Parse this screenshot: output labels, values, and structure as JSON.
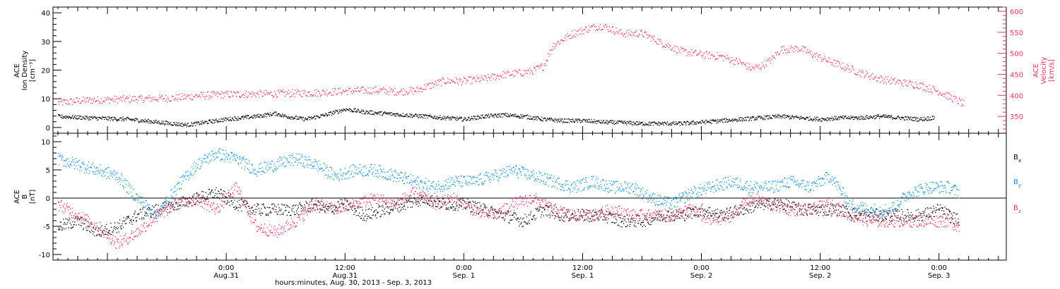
{
  "colors": {
    "density": "#000000",
    "velocity": "#e8335f",
    "bx": "#000000",
    "by": "#1a8ae6",
    "bz": "#e8335f",
    "axis": "#000000"
  },
  "x_axis": {
    "title": "hours:minutes, Aug. 30, 2013 - Sep.  3, 2013",
    "range_hours": [
      -17.5,
      78.8
    ],
    "ticks": [
      {
        "hour": 0,
        "time": "0:00",
        "date": "Aug.31"
      },
      {
        "hour": 12,
        "time": "12:00",
        "date": "Aug.31"
      },
      {
        "hour": 24,
        "time": "0:00",
        "date": "Sep. 1"
      },
      {
        "hour": 36,
        "time": "12:00",
        "date": "Sep. 1"
      },
      {
        "hour": 48,
        "time": "0:00",
        "date": "Sep. 2"
      },
      {
        "hour": 60,
        "time": "12:00",
        "date": "Sep. 2"
      },
      {
        "hour": 72,
        "time": "0:00",
        "date": "Sep. 3"
      }
    ]
  },
  "chart_data": [
    {
      "type": "scatter",
      "panel": "top",
      "ylabel_left": [
        "ACE",
        "Ion Density",
        "[cm⁻³]"
      ],
      "ylabel_right": [
        "ACE",
        "Velocity",
        "[km/s]"
      ],
      "ylim_left": [
        -2,
        42
      ],
      "ylim_right": [
        310,
        610
      ],
      "yticks_left": [
        "0",
        "10",
        "20",
        "30",
        "40"
      ],
      "yticks_right": [
        "350",
        "400",
        "450",
        "500",
        "550",
        "600"
      ],
      "series": [
        {
          "axis": "left",
          "color_key": "density",
          "points": [
            [
              -17,
              4
            ],
            [
              -14,
              3.5
            ],
            [
              -10,
              3
            ],
            [
              -7,
              2
            ],
            [
              -4,
              1
            ],
            [
              -2,
              2
            ],
            [
              0,
              3
            ],
            [
              3,
              4
            ],
            [
              5,
              5
            ],
            [
              6,
              4
            ],
            [
              8,
              3
            ],
            [
              10,
              4.5
            ],
            [
              12,
              6.5
            ],
            [
              14,
              5.5
            ],
            [
              16,
              5
            ],
            [
              18,
              4.5
            ],
            [
              20,
              4
            ],
            [
              22,
              3.5
            ],
            [
              24,
              3
            ],
            [
              26,
              4
            ],
            [
              28,
              4.5
            ],
            [
              30,
              4
            ],
            [
              32,
              3
            ],
            [
              34,
              2.5
            ],
            [
              36,
              2.5
            ],
            [
              38,
              2
            ],
            [
              40,
              1.8
            ],
            [
              42,
              1.5
            ],
            [
              44,
              1.5
            ],
            [
              46,
              1.5
            ],
            [
              48,
              2
            ],
            [
              50,
              2.5
            ],
            [
              52,
              3
            ],
            [
              54,
              3.5
            ],
            [
              56,
              4
            ],
            [
              58,
              3.5
            ],
            [
              60,
              3
            ],
            [
              62,
              3.5
            ],
            [
              64,
              3.5
            ],
            [
              66,
              4
            ],
            [
              68,
              3.5
            ],
            [
              70,
              3
            ],
            [
              71.5,
              3.5
            ]
          ]
        },
        {
          "axis": "right",
          "color_key": "velocity",
          "points": [
            [
              -17,
              383
            ],
            [
              -15,
              388
            ],
            [
              -13,
              390
            ],
            [
              -10,
              392
            ],
            [
              -8,
              393
            ],
            [
              -5,
              395
            ],
            [
              -3,
              400
            ],
            [
              0,
              403
            ],
            [
              3,
              404
            ],
            [
              5,
              405
            ],
            [
              7,
              406
            ],
            [
              9,
              407
            ],
            [
              11,
              410
            ],
            [
              13,
              412
            ],
            [
              15,
              413
            ],
            [
              17,
              410
            ],
            [
              19,
              412
            ],
            [
              20,
              420
            ],
            [
              22,
              435
            ],
            [
              24,
              435
            ],
            [
              26,
              440
            ],
            [
              28,
              450
            ],
            [
              30,
              455
            ],
            [
              31,
              460
            ],
            [
              32,
              470
            ],
            [
              33,
              520
            ],
            [
              35,
              548
            ],
            [
              37,
              563
            ],
            [
              38,
              566
            ],
            [
              40,
              548
            ],
            [
              42,
              548
            ],
            [
              44,
              525
            ],
            [
              46,
              505
            ],
            [
              48,
              498
            ],
            [
              50,
              493
            ],
            [
              52,
              478
            ],
            [
              53,
              465
            ],
            [
              54,
              470
            ],
            [
              55,
              485
            ],
            [
              56,
              510
            ],
            [
              58,
              512
            ],
            [
              60,
              490
            ],
            [
              62,
              472
            ],
            [
              64,
              455
            ],
            [
              66,
              440
            ],
            [
              68,
              432
            ],
            [
              70,
              425
            ],
            [
              72,
              410
            ],
            [
              73,
              398
            ],
            [
              74.5,
              380
            ]
          ]
        }
      ]
    },
    {
      "type": "scatter",
      "panel": "bottom",
      "ylabel_left": [
        "ACE",
        "B",
        "[nT]"
      ],
      "ylim": [
        -11,
        11.5
      ],
      "yticks": [
        "-10",
        "-5",
        "0",
        "5",
        "10"
      ],
      "zero_line": true,
      "legend": [
        "B",
        "B",
        "B"
      ],
      "legend_sub": [
        "x",
        "y",
        "z"
      ],
      "series": [
        {
          "name": "B",
          "sub": "x",
          "color_key": "bx",
          "points": [
            [
              -17,
              -5
            ],
            [
              -15,
              -4
            ],
            [
              -13,
              -6
            ],
            [
              -11,
              -5
            ],
            [
              -9,
              -3
            ],
            [
              -7,
              -2
            ],
            [
              -5,
              -1
            ],
            [
              -3,
              0
            ],
            [
              -1,
              1
            ],
            [
              1,
              -1
            ],
            [
              3,
              -2
            ],
            [
              5,
              -2
            ],
            [
              7,
              -2
            ],
            [
              9,
              -1
            ],
            [
              10,
              -2
            ],
            [
              12,
              -1
            ],
            [
              14,
              -3
            ],
            [
              16,
              -2
            ],
            [
              18,
              -1
            ],
            [
              20,
              0
            ],
            [
              22,
              -1
            ],
            [
              24,
              -1
            ],
            [
              26,
              -2
            ],
            [
              28,
              -3
            ],
            [
              30,
              -4
            ],
            [
              32,
              -2
            ],
            [
              34,
              -3
            ],
            [
              36,
              -3
            ],
            [
              38,
              -3
            ],
            [
              40,
              -4
            ],
            [
              42,
              -4
            ],
            [
              44,
              -3
            ],
            [
              46,
              -3
            ],
            [
              48,
              -2
            ],
            [
              50,
              -3
            ],
            [
              52,
              -2
            ],
            [
              54,
              -1
            ],
            [
              56,
              -1
            ],
            [
              58,
              -2
            ],
            [
              60,
              -2
            ],
            [
              62,
              -2
            ],
            [
              64,
              -3
            ],
            [
              66,
              -3
            ],
            [
              68,
              -3
            ],
            [
              70,
              -3
            ],
            [
              72,
              -2
            ],
            [
              74,
              -4
            ]
          ]
        },
        {
          "name": "B",
          "sub": "y",
          "color_key": "by",
          "points": [
            [
              -17,
              7
            ],
            [
              -15,
              6
            ],
            [
              -13,
              5
            ],
            [
              -11,
              4
            ],
            [
              -9,
              0
            ],
            [
              -7,
              -3
            ],
            [
              -5,
              2
            ],
            [
              -3,
              6
            ],
            [
              -1,
              8
            ],
            [
              1,
              7
            ],
            [
              3,
              5
            ],
            [
              5,
              6
            ],
            [
              7,
              7
            ],
            [
              9,
              6
            ],
            [
              11,
              4
            ],
            [
              13,
              5
            ],
            [
              15,
              5
            ],
            [
              17,
              4
            ],
            [
              19,
              3
            ],
            [
              21,
              2
            ],
            [
              23,
              3
            ],
            [
              25,
              3
            ],
            [
              27,
              4
            ],
            [
              29,
              5
            ],
            [
              31,
              4
            ],
            [
              33,
              3
            ],
            [
              35,
              2
            ],
            [
              37,
              3
            ],
            [
              39,
              2
            ],
            [
              41,
              2
            ],
            [
              43,
              0
            ],
            [
              45,
              -1
            ],
            [
              47,
              1
            ],
            [
              49,
              2
            ],
            [
              51,
              3
            ],
            [
              53,
              2
            ],
            [
              55,
              2
            ],
            [
              57,
              3
            ],
            [
              59,
              2
            ],
            [
              61,
              4
            ],
            [
              63,
              -1
            ],
            [
              65,
              -2
            ],
            [
              67,
              -2
            ],
            [
              69,
              1
            ],
            [
              71,
              2
            ],
            [
              73,
              2
            ],
            [
              74,
              1
            ]
          ]
        },
        {
          "name": "B",
          "sub": "z",
          "color_key": "bz",
          "points": [
            [
              -17,
              -1
            ],
            [
              -15,
              -3
            ],
            [
              -13,
              -5
            ],
            [
              -11,
              -8
            ],
            [
              -9,
              -6
            ],
            [
              -7,
              -3
            ],
            [
              -5,
              -1
            ],
            [
              -3,
              0
            ],
            [
              -1,
              -2
            ],
            [
              1,
              2
            ],
            [
              3,
              -5
            ],
            [
              5,
              -6
            ],
            [
              7,
              -4
            ],
            [
              9,
              -1
            ],
            [
              11,
              -2
            ],
            [
              13,
              -1
            ],
            [
              15,
              0
            ],
            [
              17,
              -1
            ],
            [
              19,
              1
            ],
            [
              21,
              -1
            ],
            [
              23,
              0
            ],
            [
              25,
              -2
            ],
            [
              27,
              -3
            ],
            [
              29,
              -1
            ],
            [
              31,
              0
            ],
            [
              33,
              -2
            ],
            [
              35,
              -3
            ],
            [
              37,
              -3
            ],
            [
              39,
              -2
            ],
            [
              41,
              -3
            ],
            [
              43,
              -3
            ],
            [
              45,
              -3
            ],
            [
              47,
              -2
            ],
            [
              49,
              -4
            ],
            [
              51,
              -3
            ],
            [
              53,
              0
            ],
            [
              55,
              -1
            ],
            [
              57,
              -2
            ],
            [
              59,
              -2
            ],
            [
              61,
              -1
            ],
            [
              63,
              -3
            ],
            [
              65,
              -4
            ],
            [
              67,
              -4
            ],
            [
              69,
              -4
            ],
            [
              71,
              -4
            ],
            [
              73,
              -4
            ],
            [
              74,
              -5
            ]
          ]
        }
      ]
    }
  ]
}
